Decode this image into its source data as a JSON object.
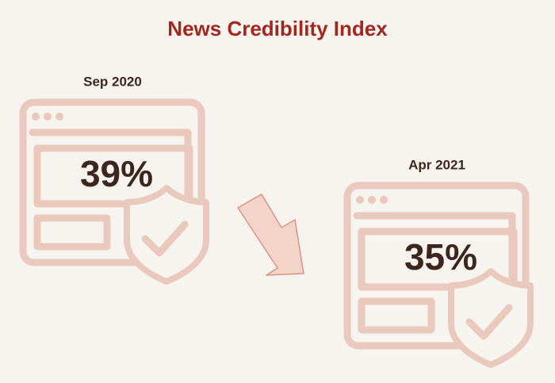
{
  "chart_data": {
    "type": "icon-comparison",
    "title": "News Credibility Index",
    "categories": [
      "Sep 2020",
      "Apr 2021"
    ],
    "values": [
      39,
      35
    ],
    "value_labels": [
      "39%",
      "35%"
    ],
    "color": "#e9c9bd"
  }
}
